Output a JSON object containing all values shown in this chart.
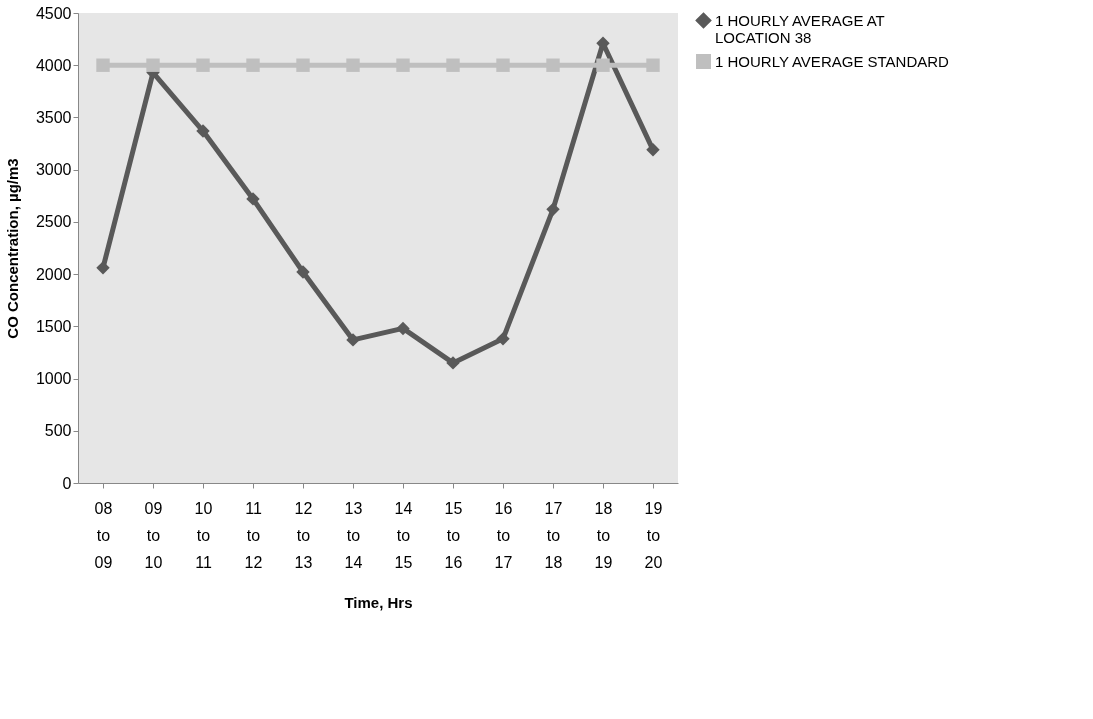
{
  "chart_data": {
    "type": "line",
    "xlabel": "Time, Hrs",
    "ylabel": "CO Concentration, µg/m3",
    "categories": [
      "08 to 09",
      "09 to 10",
      "10 to 11",
      "11 to 12",
      "12 to 13",
      "13 to 14",
      "14 to 15",
      "15 to 16",
      "16 to 17",
      "17 to 18",
      "18 to 19",
      "19 to 20"
    ],
    "series": [
      {
        "name": "1 HOURLY AVERAGE AT LOCATION 38",
        "color": "#595959",
        "marker": "diamond",
        "values": [
          2060,
          3930,
          3370,
          2720,
          2020,
          1370,
          1480,
          1150,
          1380,
          2620,
          4210,
          3190
        ]
      },
      {
        "name": "1 HOURLY AVERAGE STANDARD",
        "color": "#bfbfbf",
        "marker": "square",
        "values": [
          4000,
          4000,
          4000,
          4000,
          4000,
          4000,
          4000,
          4000,
          4000,
          4000,
          4000,
          4000
        ]
      }
    ],
    "ylim": [
      0,
      4500
    ],
    "yticks": [
      0,
      500,
      1000,
      1500,
      2000,
      2500,
      3000,
      3500,
      4000,
      4500
    ],
    "grid": false,
    "legend": "right"
  }
}
